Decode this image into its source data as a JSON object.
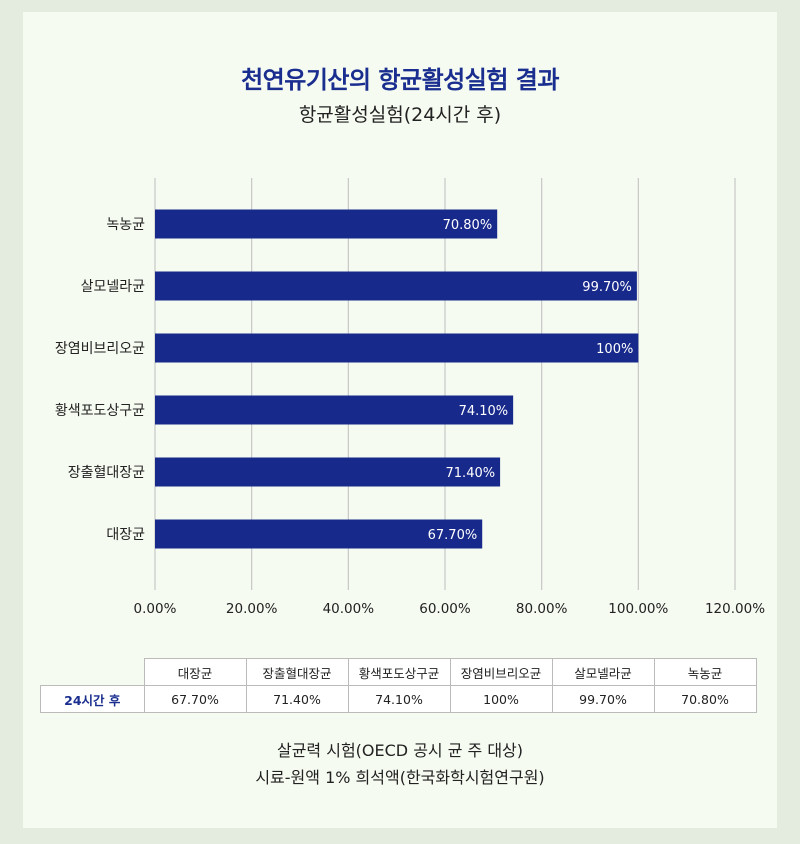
{
  "title": "천연유기산의 항균활성실험 결과",
  "subtitle": "항균활성실험(24시간 후)",
  "chart_data": {
    "type": "bar",
    "orientation": "horizontal",
    "categories": [
      "녹농균",
      "살모넬라균",
      "장염비브리오균",
      "황색포도상구균",
      "장출혈대장균",
      "대장균"
    ],
    "values": [
      70.8,
      99.7,
      100,
      74.1,
      71.4,
      67.7
    ],
    "value_labels": [
      "70.80%",
      "99.70%",
      "100%",
      "74.10%",
      "71.40%",
      "67.70%"
    ],
    "xlim": [
      0,
      120
    ],
    "x_ticks": [
      0,
      20,
      40,
      60,
      80,
      100,
      120
    ],
    "x_tick_labels": [
      "0.00%",
      "20.00%",
      "40.00%",
      "60.00%",
      "80.00%",
      "100.00%",
      "120.00%"
    ],
    "grid": true,
    "bar_color": "#17298a"
  },
  "table": {
    "headers": [
      "대장균",
      "장출혈대장균",
      "황색포도상구균",
      "장염비브리오균",
      "살모넬라균",
      "녹농균"
    ],
    "row_label": "24시간 후",
    "values": [
      "67.70%",
      "71.40%",
      "74.10%",
      "100%",
      "99.70%",
      "70.80%"
    ]
  },
  "notes": {
    "line1": "살균력 시험(OECD 공시 균 주 대상)",
    "line2": "시료-원액 1% 희석액(한국화학시험연구원)"
  }
}
